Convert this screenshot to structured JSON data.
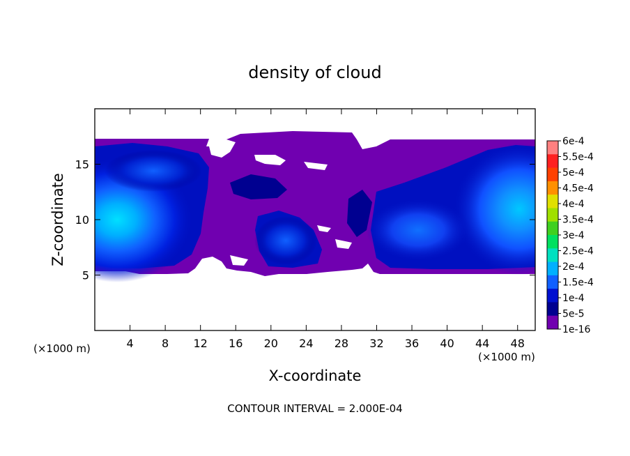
{
  "chart_data": {
    "type": "heatmap",
    "title": "density of cloud",
    "xlabel": "X-coordinate",
    "ylabel": "Z-coordinate",
    "x_unit": "(×1000 m)",
    "x_unit_right": "(×1000 m)",
    "footer": "CONTOUR INTERVAL = 2.000E-04",
    "xlim": [
      0,
      50
    ],
    "ylim": [
      0,
      20
    ],
    "x_ticks": [
      4,
      8,
      12,
      16,
      20,
      24,
      28,
      32,
      36,
      40,
      44,
      48
    ],
    "y_ticks": [
      5,
      10,
      15
    ],
    "colorbar": {
      "labels": [
        "6e-4",
        "5.5e-4",
        "5e-4",
        "4.5e-4",
        "4e-4",
        "3.5e-4",
        "3e-4",
        "2.5e-4",
        "2e-4",
        "1.5e-4",
        "1e-4",
        "5e-5",
        "1e-16"
      ],
      "levels": [
        0.0006,
        0.00055,
        0.0005,
        0.00045,
        0.0004,
        0.00035,
        0.0003,
        0.00025,
        0.0002,
        0.00015,
        0.0001,
        5e-05,
        1e-16
      ],
      "colors": [
        "#ff8080",
        "#ff2020",
        "#ff4000",
        "#ff9000",
        "#e0e000",
        "#a0e000",
        "#40d020",
        "#00e060",
        "#00e0c0",
        "#00b0ff",
        "#1060ff",
        "#0010d0",
        "#000090",
        "#7000b0"
      ]
    },
    "cloud_layer": {
      "z_bottom": 5.2,
      "z_top": 17.1,
      "peak_values": [
        {
          "x": 2,
          "z": 11,
          "value": 0.00018
        },
        {
          "x": 48,
          "z": 11,
          "value": 0.00016
        },
        {
          "x": 37,
          "z": 10,
          "value": 0.00011
        },
        {
          "x": 22,
          "z": 8,
          "value": 8e-05
        }
      ]
    }
  }
}
